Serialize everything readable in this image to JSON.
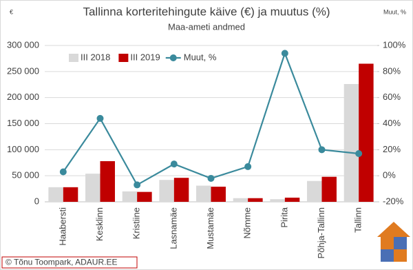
{
  "chart_data": {
    "type": "bar",
    "title": "Tallinna korteritehingute käive (€) ja muutus (%)",
    "subtitle": "Maa-ameti andmed",
    "y_label": "€",
    "y2_label": "Muut, %",
    "credit": "© Tõnu Toompark, ADAUR.EE",
    "categories": [
      "Haabersti",
      "Kesklinn",
      "Kristiine",
      "Lasnamäe",
      "Mustamäe",
      "Nõmme",
      "Pirita",
      "Põhja-Tallinn",
      "Tallinn"
    ],
    "series": [
      {
        "name": "III 2018",
        "type": "bar",
        "color": "#d9d9d9",
        "values": [
          28000,
          54000,
          20000,
          42000,
          31000,
          7000,
          5000,
          40000,
          226000
        ]
      },
      {
        "name": "III 2019",
        "type": "bar",
        "color": "#c00000",
        "values": [
          28000,
          78000,
          19000,
          46000,
          29000,
          7000,
          8000,
          48000,
          265000
        ]
      },
      {
        "name": "Muut, %",
        "type": "line",
        "axis": "y2",
        "color": "#3a8a9c",
        "values": [
          3,
          44,
          -7,
          9,
          -2,
          7,
          94,
          20,
          17
        ]
      }
    ],
    "ylim": [
      0,
      300000
    ],
    "yticks": [
      {
        "value": 0,
        "label": "0"
      },
      {
        "value": 50000,
        "label": "50 000"
      },
      {
        "value": 100000,
        "label": "100 000"
      },
      {
        "value": 150000,
        "label": "150 000"
      },
      {
        "value": 200000,
        "label": "200 000"
      },
      {
        "value": 250000,
        "label": "250 000"
      },
      {
        "value": 300000,
        "label": "300 000"
      }
    ],
    "y2lim": [
      -20,
      100
    ],
    "y2ticks": [
      {
        "value": -20,
        "label": "-20%"
      },
      {
        "value": 0,
        "label": "0%"
      },
      {
        "value": 20,
        "label": "20%"
      },
      {
        "value": 40,
        "label": "40%"
      },
      {
        "value": 60,
        "label": "60%"
      },
      {
        "value": 80,
        "label": "80%"
      },
      {
        "value": 100,
        "label": "100%"
      }
    ],
    "grid": true,
    "legend": "top-left"
  }
}
